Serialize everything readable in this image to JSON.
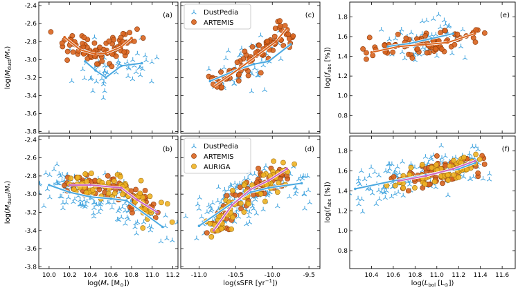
{
  "colors": {
    "dustpedia": "#4aa8e0",
    "artemis": "#d9641e",
    "auriga": "#f0b323",
    "auriga_line": "#cc66c0"
  },
  "legend_top": [
    "DustPedia",
    "ARTEMIS"
  ],
  "legend_bottom": [
    "DustPedia",
    "ARTEMIS",
    "AURIGA"
  ],
  "chart_data": [
    {
      "id": "a",
      "type": "scatter",
      "panel_label": "(a)",
      "xlim": [
        9.9,
        11.25
      ],
      "ylim": [
        -3.82,
        -2.36
      ],
      "xticks": [
        10.0,
        10.2,
        10.4,
        10.6,
        10.8,
        11.0,
        11.2
      ],
      "yticks": [
        -3.8,
        -3.6,
        -3.4,
        -3.2,
        -3.0,
        -2.8,
        -2.6,
        -2.4
      ],
      "ylabel": "log(M_dust/M_*)",
      "xlabel": "",
      "series": [
        {
          "name": "DustPedia",
          "line": [
            [
              10.35,
              -3.02
            ],
            [
              10.45,
              -3.12
            ],
            [
              10.55,
              -3.2
            ],
            [
              10.7,
              -3.07
            ],
            [
              10.9,
              -3.04
            ]
          ]
        },
        {
          "name": "ARTEMIS",
          "line": [
            [
              10.15,
              -2.75
            ],
            [
              10.3,
              -2.89
            ],
            [
              10.45,
              -2.94
            ],
            [
              10.55,
              -2.93
            ],
            [
              10.7,
              -2.86
            ],
            [
              10.8,
              -2.76
            ]
          ]
        }
      ]
    },
    {
      "id": "c",
      "type": "scatter",
      "panel_label": "(c)",
      "xlim": [
        -11.25,
        -9.35
      ],
      "ylim": [
        -3.82,
        -2.36
      ],
      "xticks": [
        -11.0,
        -10.5,
        -10.0,
        -9.5
      ],
      "yticks": [
        -3.8,
        -3.6,
        -3.4,
        -3.2,
        -3.0,
        -2.8,
        -2.6,
        -2.4
      ],
      "ylabel": "",
      "xlabel": "",
      "series": [
        {
          "name": "DustPedia",
          "line": [
            [
              -10.85,
              -3.24
            ],
            [
              -10.5,
              -3.12
            ],
            [
              -10.25,
              -3.05
            ],
            [
              -10.05,
              -3.02
            ],
            [
              -9.75,
              -2.83
            ]
          ]
        },
        {
          "name": "ARTEMIS",
          "line": [
            [
              -10.8,
              -3.3
            ],
            [
              -10.45,
              -3.1
            ],
            [
              -10.2,
              -2.95
            ],
            [
              -9.95,
              -2.8
            ],
            [
              -9.8,
              -2.65
            ]
          ]
        }
      ]
    },
    {
      "id": "e",
      "type": "scatter",
      "panel_label": "(e)",
      "xlim": [
        10.2,
        11.72
      ],
      "ylim": [
        0.62,
        1.95
      ],
      "xticks": [
        10.4,
        10.6,
        10.8,
        11.0,
        11.2,
        11.4,
        11.6
      ],
      "yticks": [
        0.8,
        1.0,
        1.2,
        1.4,
        1.6,
        1.8
      ],
      "ylabel": "log(f_abs [%])",
      "xlabel": "",
      "series": [
        {
          "name": "DustPedia",
          "line": [
            [
              10.55,
              1.5
            ],
            [
              10.75,
              1.53
            ],
            [
              10.95,
              1.58
            ],
            [
              11.15,
              1.63
            ]
          ]
        },
        {
          "name": "ARTEMIS",
          "line": [
            [
              10.4,
              1.44
            ],
            [
              10.65,
              1.5
            ],
            [
              10.9,
              1.52
            ],
            [
              11.1,
              1.54
            ],
            [
              11.35,
              1.63
            ]
          ]
        }
      ]
    },
    {
      "id": "b",
      "type": "scatter",
      "panel_label": "(b)",
      "xlim": [
        9.9,
        11.25
      ],
      "ylim": [
        -3.82,
        -2.36
      ],
      "xticks": [
        10.0,
        10.2,
        10.4,
        10.6,
        10.8,
        11.0,
        11.2
      ],
      "yticks": [
        -3.8,
        -3.6,
        -3.4,
        -3.2,
        -3.0,
        -2.8,
        -2.6,
        -2.4
      ],
      "ylabel": "log(M_dust/M_*)",
      "xlabel": "log(M_* [M_sun])",
      "series": [
        {
          "name": "DustPedia",
          "line": [
            [
              10.0,
              -2.9
            ],
            [
              10.2,
              -2.98
            ],
            [
              10.4,
              -3.03
            ],
            [
              10.6,
              -3.05
            ],
            [
              10.75,
              -3.07
            ],
            [
              11.1,
              -3.36
            ]
          ]
        },
        {
          "name": "ARTEMIS",
          "line": []
        },
        {
          "name": "AURIGA",
          "line": [
            [
              10.2,
              -2.9
            ],
            [
              10.4,
              -2.9
            ],
            [
              10.7,
              -2.93
            ],
            [
              10.85,
              -3.06
            ],
            [
              11.05,
              -3.2
            ]
          ]
        }
      ]
    },
    {
      "id": "d",
      "type": "scatter",
      "panel_label": "(d)",
      "xlim": [
        -11.25,
        -9.35
      ],
      "ylim": [
        -3.82,
        -2.36
      ],
      "xticks": [
        -11.0,
        -10.5,
        -10.0,
        -9.5
      ],
      "yticks": [
        -3.8,
        -3.6,
        -3.4,
        -3.2,
        -3.0,
        -2.8,
        -2.6,
        -2.4
      ],
      "ylabel": "",
      "xlabel": "log(sSFR [yr^-1])",
      "series": [
        {
          "name": "DustPedia",
          "line": [
            [
              -11.0,
              -3.35
            ],
            [
              -10.55,
              -3.1
            ],
            [
              -10.3,
              -2.98
            ],
            [
              -10.05,
              -2.93
            ],
            [
              -9.6,
              -2.88
            ]
          ]
        },
        {
          "name": "ARTEMIS",
          "line": []
        },
        {
          "name": "AURIGA",
          "line": [
            [
              -10.8,
              -3.4
            ],
            [
              -10.55,
              -3.12
            ],
            [
              -10.3,
              -2.95
            ],
            [
              -10.05,
              -2.85
            ],
            [
              -9.8,
              -2.72
            ]
          ]
        }
      ]
    },
    {
      "id": "f",
      "type": "scatter",
      "panel_label": "(f)",
      "xlim": [
        10.2,
        11.72
      ],
      "ylim": [
        0.62,
        1.95
      ],
      "xticks": [
        10.4,
        10.6,
        10.8,
        11.0,
        11.2,
        11.4,
        11.6
      ],
      "yticks": [
        0.8,
        1.0,
        1.2,
        1.4,
        1.6,
        1.8
      ],
      "ylabel": "log(f_abs [%])",
      "xlabel": "log(L_bol [L_sun])",
      "series": [
        {
          "name": "DustPedia",
          "line": [
            [
              10.25,
              1.42
            ],
            [
              10.6,
              1.5
            ],
            [
              10.9,
              1.56
            ],
            [
              11.2,
              1.62
            ],
            [
              11.35,
              1.68
            ]
          ]
        },
        {
          "name": "ARTEMIS",
          "line": []
        },
        {
          "name": "AURIGA",
          "line": [
            [
              10.65,
              1.5
            ],
            [
              10.9,
              1.55
            ],
            [
              11.15,
              1.62
            ],
            [
              11.35,
              1.7
            ]
          ]
        }
      ]
    }
  ]
}
